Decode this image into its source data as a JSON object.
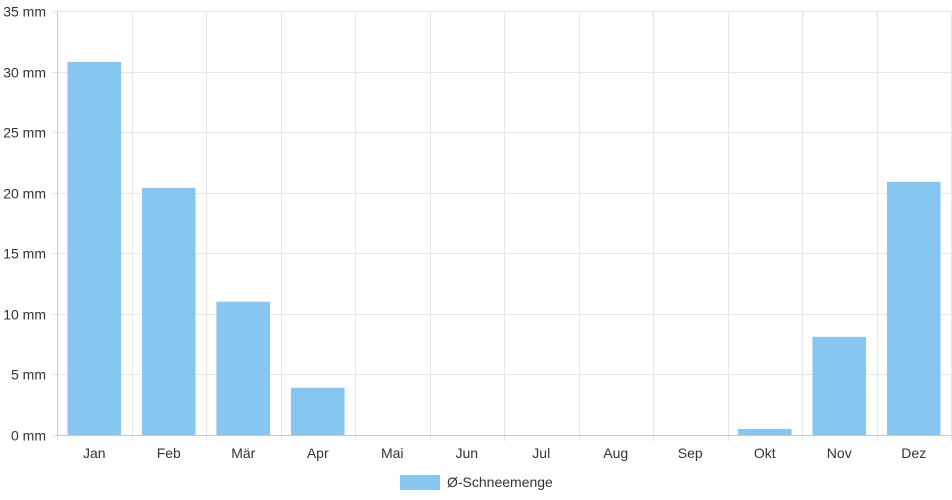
{
  "chart_data": {
    "type": "bar",
    "categories": [
      "Jan",
      "Feb",
      "Mär",
      "Apr",
      "Mai",
      "Jun",
      "Jul",
      "Aug",
      "Sep",
      "Okt",
      "Nov",
      "Dez"
    ],
    "series": [
      {
        "name": "Ø-Schneemenge",
        "color": "#88c6f2",
        "values": [
          30.8,
          20.4,
          11.0,
          3.9,
          0,
          0,
          0,
          0,
          0,
          0.5,
          8.1,
          20.9
        ]
      }
    ],
    "y_unit": "mm",
    "ylim": [
      0,
      35
    ],
    "y_ticks": [
      0,
      5,
      10,
      15,
      20,
      25,
      30,
      35
    ],
    "y_tick_labels": [
      "0 mm",
      "5 mm",
      "10 mm",
      "15 mm",
      "20 mm",
      "25 mm",
      "30 mm",
      "35 mm"
    ],
    "grid": true,
    "legend": {
      "position": "bottom",
      "label": "Ø-Schneemenge"
    },
    "colors": {
      "grid": "#e6e6e6",
      "axis": "#c8c8c8",
      "text": "#333333"
    }
  }
}
